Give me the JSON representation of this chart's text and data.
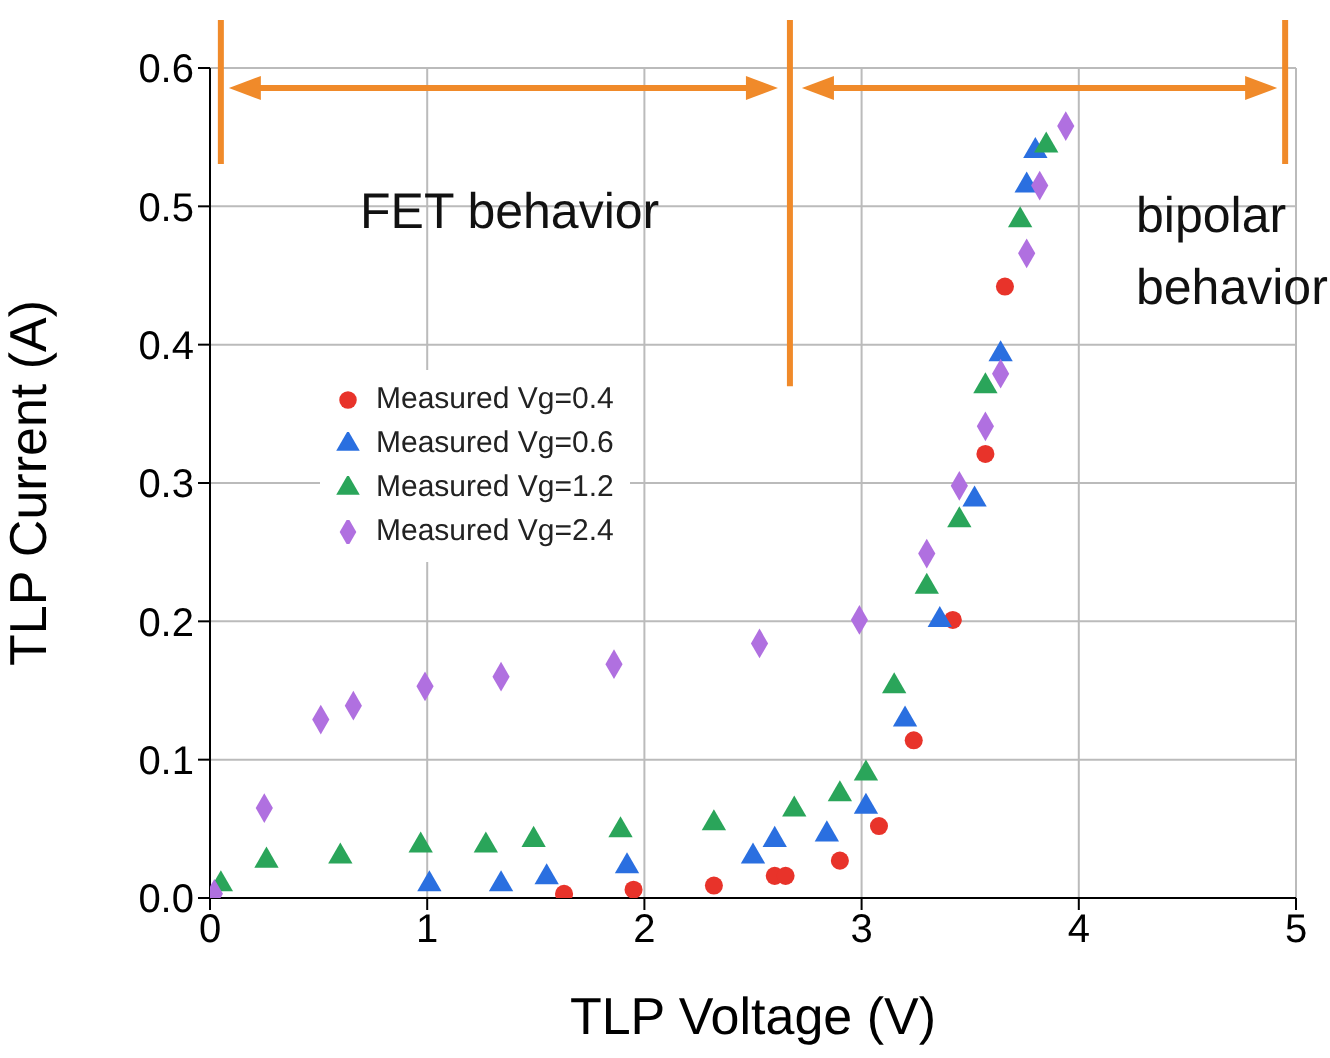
{
  "chart_data": {
    "type": "scatter",
    "xlabel": "TLP Voltage (V)",
    "ylabel": "TLP Current (A)",
    "xlim": [
      0,
      5
    ],
    "xticks": [
      0,
      1,
      2,
      3,
      4,
      5
    ],
    "ylim": [
      0,
      0.6
    ],
    "yticks": [
      {
        "value": 0,
        "label": "0.0"
      },
      0.1,
      0.2,
      0.3,
      0.4,
      0.5,
      0.6
    ],
    "grid": true,
    "legend": "left",
    "annotations": [
      "FET behavior",
      "bipolar behavior"
    ],
    "ref_lines": [
      {
        "axis": "x",
        "value": 2.67,
        "color": "#f08a2a"
      }
    ],
    "series": [
      {
        "name": "Measured Vg=0.4",
        "color": "#e8332a",
        "marker": "circle",
        "x": [
          1.63,
          1.95,
          2.32,
          2.6,
          2.65,
          2.9,
          3.08,
          3.24,
          3.42,
          3.57,
          3.66
        ],
        "values": [
          0.003,
          0.006,
          0.009,
          0.016,
          0.016,
          0.027,
          0.052,
          0.114,
          0.201,
          0.321,
          0.442
        ]
      },
      {
        "name": "Measured Vg=0.6",
        "color": "#2a6fe0",
        "marker": "triangle",
        "x": [
          1.01,
          1.34,
          1.55,
          1.92,
          2.5,
          2.6,
          2.84,
          3.02,
          3.2,
          3.36,
          3.52,
          3.64,
          3.76,
          3.8
        ],
        "values": [
          0.01,
          0.01,
          0.015,
          0.023,
          0.03,
          0.042,
          0.046,
          0.066,
          0.129,
          0.201,
          0.288,
          0.393,
          0.515,
          0.54
        ]
      },
      {
        "name": "Measured Vg=1.2",
        "color": "#2aa55a",
        "marker": "triangle",
        "x": [
          0.05,
          0.26,
          0.6,
          0.97,
          1.27,
          1.49,
          1.89,
          2.32,
          2.69,
          2.9,
          3.02,
          3.15,
          3.3,
          3.45,
          3.57,
          3.73,
          3.85
        ],
        "values": [
          0.01,
          0.027,
          0.03,
          0.038,
          0.038,
          0.042,
          0.049,
          0.054,
          0.064,
          0.075,
          0.09,
          0.153,
          0.225,
          0.273,
          0.37,
          0.49,
          0.544
        ]
      },
      {
        "name": "Measured Vg=2.4",
        "color": "#b070e0",
        "marker": "diamond",
        "x": [
          0.02,
          0.25,
          0.51,
          0.66,
          0.99,
          1.34,
          1.86,
          2.53,
          2.99,
          3.3,
          3.45,
          3.57,
          3.64,
          3.76,
          3.82,
          3.94
        ],
        "values": [
          0.003,
          0.065,
          0.129,
          0.139,
          0.153,
          0.16,
          0.169,
          0.184,
          0.201,
          0.249,
          0.298,
          0.341,
          0.379,
          0.466,
          0.515,
          0.558
        ]
      }
    ]
  }
}
